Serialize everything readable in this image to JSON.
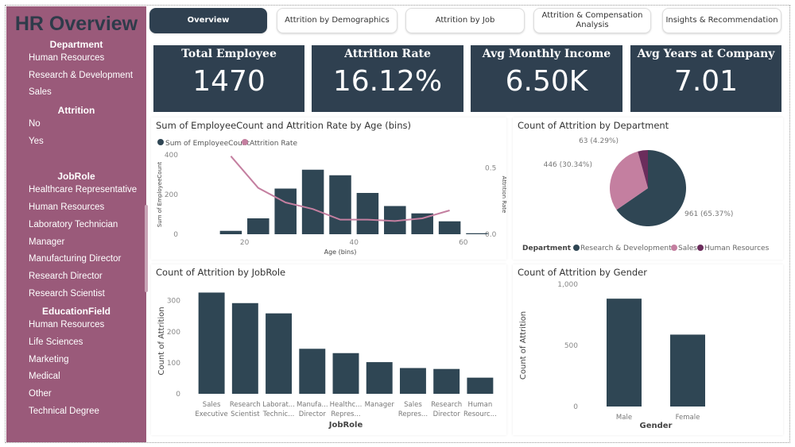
{
  "sidebar": {
    "title": "HR Overview",
    "sections": [
      {
        "label": "Department",
        "items": [
          "Human Resources",
          "Research & Development",
          "Sales"
        ]
      },
      {
        "label": "Attrition",
        "items": [
          "No",
          "Yes"
        ]
      },
      {
        "label": "JobRole",
        "items": [
          "Healthcare Representative",
          "Human Resources",
          "Laboratory Technician",
          "Manager",
          "Manufacturing Director",
          "Research Director",
          "Research Scientist"
        ]
      },
      {
        "label": "EducationField",
        "items": [
          "Human Resources",
          "Life Sciences",
          "Marketing",
          "Medical",
          "Other",
          "Technical Degree"
        ]
      }
    ]
  },
  "tabs": [
    "Overview",
    "Attrition by Demographics",
    "Attrition by Job",
    "Attrition & Compensation Analysis",
    "Insights & Recommendation"
  ],
  "kpis": [
    {
      "title": "Total Employee",
      "value": "1470"
    },
    {
      "title": "Attrition Rate",
      "value": "16.12%"
    },
    {
      "title": "Avg Monthly Income",
      "value": "6.50K"
    },
    {
      "title": "Avg Years at Company",
      "value": "7.01"
    }
  ],
  "colors": {
    "dark": "#2f4654",
    "pink": "#c47fa0",
    "purple": "#6b2d5c",
    "sidebar": "#9a5a7a"
  },
  "chart_data": [
    {
      "type": "bar+line",
      "title": "Sum of EmployeeCount and Attrition Rate by Age (bins)",
      "xlabel": "Age (bins)",
      "ylabel": "Sum of EmployeeCount",
      "y2label": "Attrition Rate",
      "legend": [
        "Sum of EmployeeCount",
        "Attrition Rate"
      ],
      "legend_position": "top-left",
      "x": [
        15,
        20,
        25,
        30,
        35,
        40,
        45,
        50,
        55,
        60
      ],
      "x_ticks": [
        "20",
        "40",
        "60"
      ],
      "y_ticks": [
        "0",
        "200",
        "400"
      ],
      "y2_ticks": [
        "0.0",
        "0.5"
      ],
      "ylim": [
        0,
        400
      ],
      "y2lim": [
        0,
        0.6
      ],
      "series": [
        {
          "name": "Sum of EmployeeCount",
          "type": "bar",
          "values": [
            17,
            80,
            230,
            325,
            297,
            208,
            142,
            105,
            65,
            5
          ]
        },
        {
          "name": "Attrition Rate",
          "type": "line",
          "values": [
            0.59,
            0.35,
            0.24,
            0.19,
            0.11,
            0.11,
            0.1,
            0.12,
            0.18,
            null
          ]
        }
      ]
    },
    {
      "type": "pie",
      "title": "Count of Attrition by Department",
      "legend_title": "Department",
      "legend_position": "bottom",
      "categories": [
        "Research & Development",
        "Sales",
        "Human Resources"
      ],
      "values": [
        961,
        446,
        63
      ],
      "labels": [
        "961 (65.37%)",
        "446 (30.34%)",
        "63 (4.29%)"
      ]
    },
    {
      "type": "bar",
      "title": "Count of Attrition by JobRole",
      "xlabel": "JobRole",
      "ylabel": "Count of Attrition",
      "ylim": [
        0,
        340
      ],
      "y_ticks": [
        "0",
        "100",
        "200",
        "300"
      ],
      "categories": [
        [
          "Sales",
          "Executive"
        ],
        [
          "Research",
          "Scientist"
        ],
        [
          "Laborat...",
          "Technic..."
        ],
        [
          "Manufa...",
          "Director"
        ],
        [
          "Healthc...",
          "Repres..."
        ],
        [
          "Manager",
          ""
        ],
        [
          "Sales",
          "Repres..."
        ],
        [
          "Research",
          "Director"
        ],
        [
          "Human",
          "Resourc..."
        ]
      ],
      "values": [
        326,
        292,
        259,
        145,
        131,
        102,
        83,
        80,
        52
      ]
    },
    {
      "type": "bar",
      "title": "Count of Attrition by Gender",
      "xlabel": "Gender",
      "ylabel": "Count of Attrition",
      "ylim": [
        0,
        1000
      ],
      "y_ticks": [
        "0",
        "500",
        "1,000"
      ],
      "categories": [
        [
          "Male"
        ],
        [
          "Female"
        ]
      ],
      "values": [
        882,
        588
      ]
    }
  ]
}
